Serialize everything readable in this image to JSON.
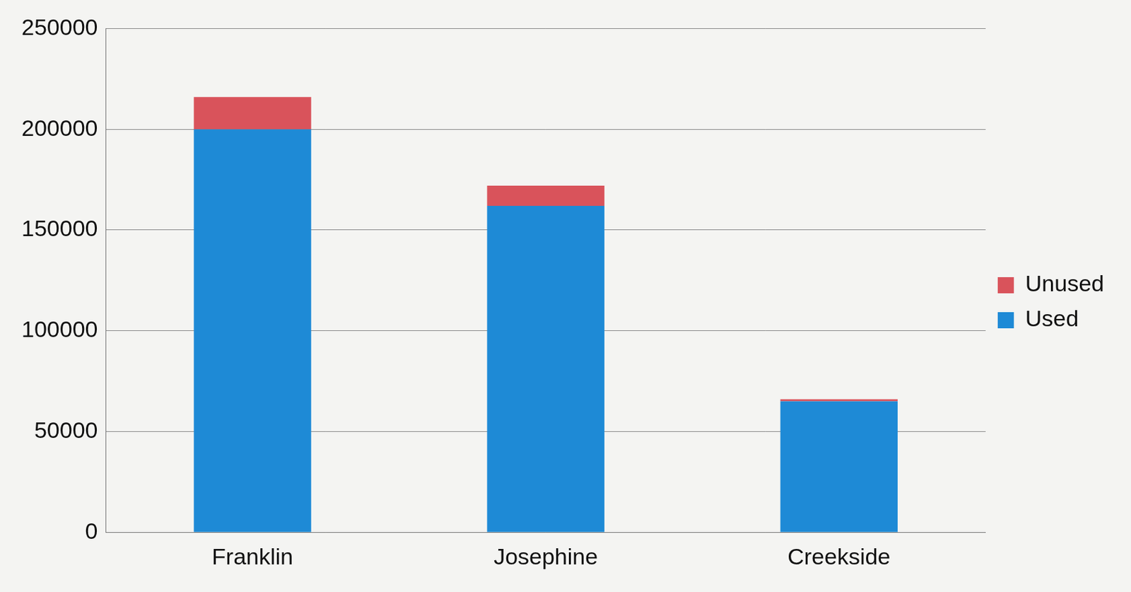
{
  "chart_data": {
    "type": "bar",
    "categories": [
      "Franklin",
      "Josephine",
      "Creekside"
    ],
    "series": [
      {
        "name": "Used",
        "color": "#1e8ad6",
        "values": [
          200000,
          162000,
          65000
        ]
      },
      {
        "name": "Unused",
        "color": "#d9535b",
        "values": [
          16000,
          10000,
          1000
        ]
      }
    ],
    "ylim": [
      0,
      250000
    ],
    "yticks": [
      0,
      50000,
      100000,
      150000,
      200000,
      250000
    ],
    "grid": true,
    "stacked": true,
    "legend": "right"
  }
}
